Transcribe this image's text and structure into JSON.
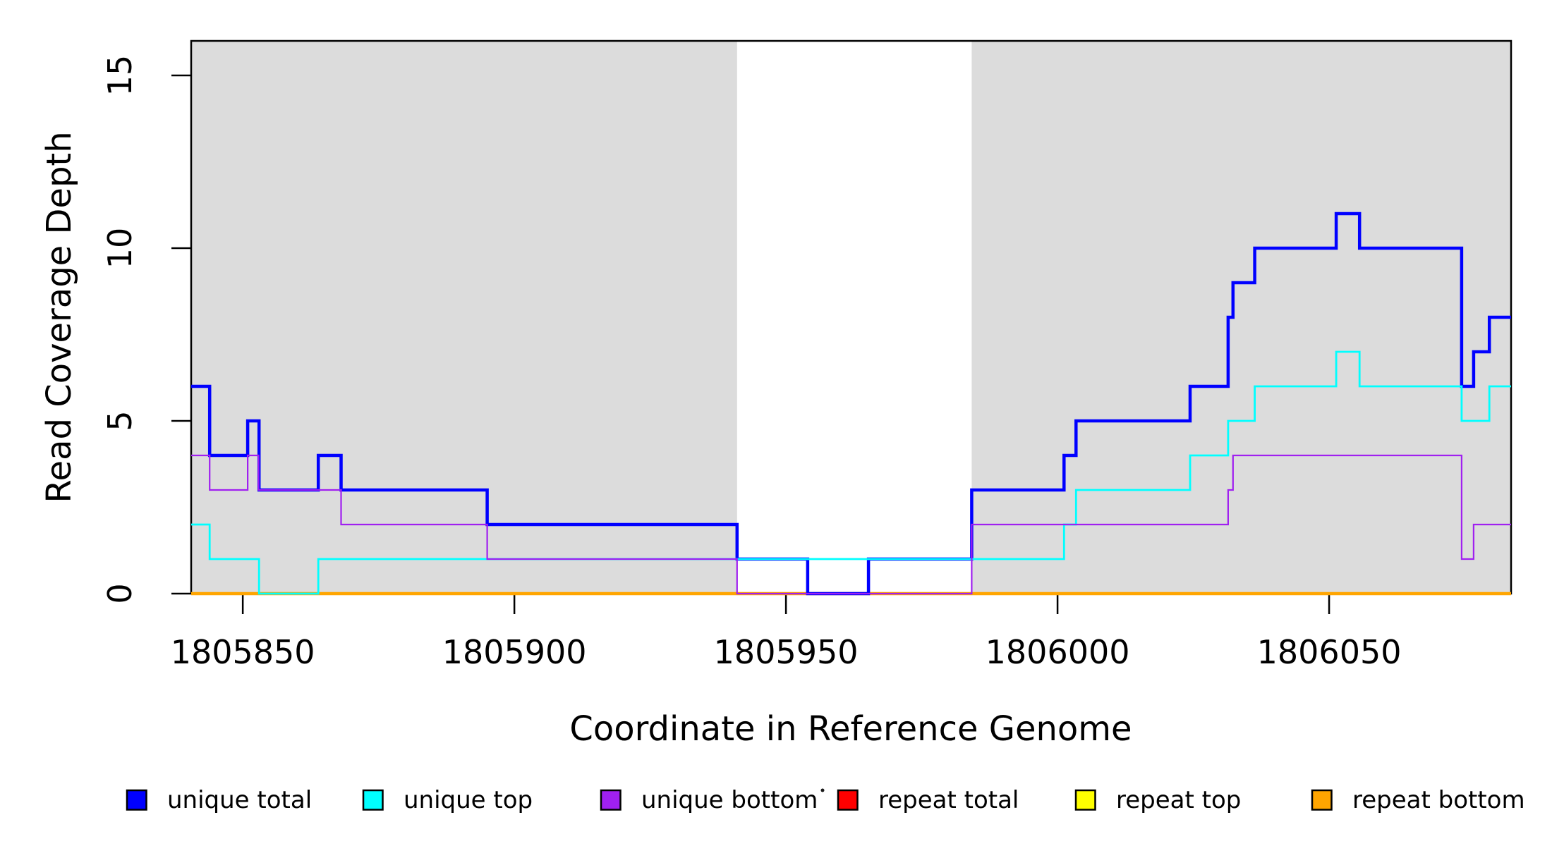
{
  "chart_data": {
    "type": "line",
    "subtype": "step-coverage-plot",
    "title": "",
    "xlabel": "Coordinate in Reference Genome",
    "ylabel": "Read Coverage Depth",
    "xlim": [
      1805840.5,
      1806083.5
    ],
    "ylim": [
      0,
      16
    ],
    "grid": false,
    "legend_position": "bottom",
    "background_color": "#ffffff",
    "x_ticks": [
      {
        "value": 1805850,
        "label": "1805850"
      },
      {
        "value": 1805900,
        "label": "1805900"
      },
      {
        "value": 1805950,
        "label": "1805950"
      },
      {
        "value": 1806000,
        "label": "1806000"
      },
      {
        "value": 1806050,
        "label": "1806050"
      }
    ],
    "y_ticks": [
      {
        "value": 0,
        "label": "0"
      },
      {
        "value": 5,
        "label": "5"
      },
      {
        "value": 10,
        "label": "10"
      },
      {
        "value": 15,
        "label": "15"
      }
    ],
    "shaded_regions": [
      {
        "x_start": 1805840.5,
        "x_end": 1805941.0,
        "color": "#dcdcdc"
      },
      {
        "x_start": 1805984.2,
        "x_end": 1806083.5,
        "color": "#dcdcdc"
      }
    ],
    "series": [
      {
        "name": "unique total",
        "color": "#0000ff",
        "line_width": 4.5,
        "steps_x_value": [
          [
            1805840.5,
            6
          ],
          [
            1805843.9,
            4
          ],
          [
            1805850.9,
            5
          ],
          [
            1805853.0,
            3
          ],
          [
            1805863.9,
            4
          ],
          [
            1805868.1,
            3
          ],
          [
            1805895.0,
            2
          ],
          [
            1805941.0,
            1
          ],
          [
            1805954.0,
            0
          ],
          [
            1805965.2,
            1
          ],
          [
            1805984.2,
            3
          ],
          [
            1806001.2,
            4
          ],
          [
            1806003.4,
            5
          ],
          [
            1806024.4,
            6
          ],
          [
            1806031.4,
            8
          ],
          [
            1806032.3,
            9
          ],
          [
            1806036.3,
            10
          ],
          [
            1806051.3,
            11
          ],
          [
            1806055.6,
            10
          ],
          [
            1806074.4,
            6
          ],
          [
            1806076.6,
            7
          ],
          [
            1806079.5,
            8
          ]
        ]
      },
      {
        "name": "unique top",
        "color": "#00ffff",
        "line_width": 2.8,
        "steps_x_value": [
          [
            1805840.5,
            2
          ],
          [
            1805843.9,
            1
          ],
          [
            1805853.0,
            0
          ],
          [
            1805863.9,
            1
          ],
          [
            1806001.2,
            2
          ],
          [
            1806003.4,
            3
          ],
          [
            1806024.4,
            4
          ],
          [
            1806031.4,
            5
          ],
          [
            1806036.3,
            6
          ],
          [
            1806051.3,
            7
          ],
          [
            1806055.6,
            6
          ],
          [
            1806074.4,
            5
          ],
          [
            1806079.5,
            6
          ]
        ]
      },
      {
        "name": "unique bottom",
        "color": "#a020f0",
        "line_width": 2.2,
        "steps_x_value": [
          [
            1805840.5,
            4
          ],
          [
            1805843.9,
            3
          ],
          [
            1805850.9,
            4
          ],
          [
            1805852.9,
            3
          ],
          [
            1805868.1,
            2
          ],
          [
            1805895.0,
            1
          ],
          [
            1805941.0,
            0
          ],
          [
            1805984.2,
            2
          ],
          [
            1806031.4,
            3
          ],
          [
            1806032.3,
            4
          ],
          [
            1806074.4,
            1
          ],
          [
            1806076.6,
            2
          ]
        ]
      },
      {
        "name": "repeat total",
        "color": "#ff0000",
        "line_width": 3,
        "steps_x_value": [
          [
            1805840.5,
            0
          ]
        ]
      },
      {
        "name": "repeat top",
        "color": "#ffff00",
        "line_width": 3,
        "steps_x_value": [
          [
            1805840.5,
            0
          ]
        ]
      },
      {
        "name": "repeat bottom",
        "color": "#ffa500",
        "line_width": 4.5,
        "steps_x_value": [
          [
            1805840.5,
            0
          ]
        ]
      }
    ],
    "draw_order": [
      3,
      4,
      5,
      0,
      1,
      2
    ]
  },
  "legend": {
    "items": [
      {
        "label": "unique total",
        "color": "#0000ff"
      },
      {
        "label": "unique top",
        "color": "#00ffff"
      },
      {
        "label": "unique bottom",
        "color": "#a020f0"
      },
      {
        "label": "repeat total",
        "color": "#ff0000"
      },
      {
        "label": "repeat top",
        "color": "#ffff00"
      },
      {
        "label": "repeat bottom",
        "color": "#ffa500"
      }
    ]
  }
}
